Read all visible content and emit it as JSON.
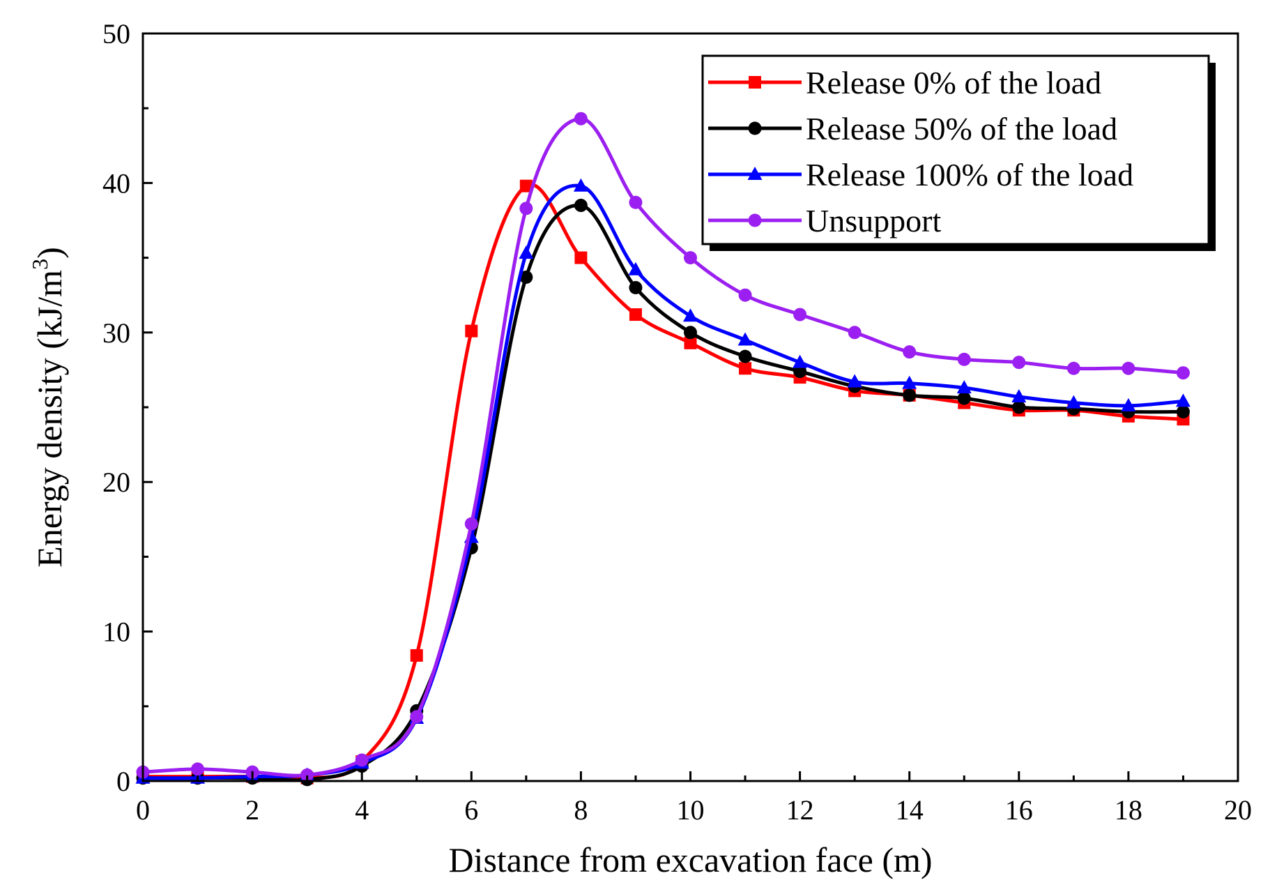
{
  "chart_data": {
    "type": "line",
    "title": "",
    "xlabel": "Distance from excavation face (m)",
    "ylabel_main": "Energy density (kJ/m",
    "ylabel_sup": "3",
    "ylabel_close": ")",
    "xlim": [
      0,
      20
    ],
    "ylim": [
      0,
      50
    ],
    "xticks": [
      0,
      2,
      4,
      6,
      8,
      10,
      12,
      14,
      16,
      18,
      20
    ],
    "yticks": [
      0,
      10,
      20,
      30,
      40,
      50
    ],
    "grid": false,
    "legend_position": "top-right",
    "x": [
      0,
      1,
      2,
      3,
      4,
      5,
      6,
      7,
      8,
      9,
      10,
      11,
      12,
      13,
      14,
      15,
      16,
      17,
      18,
      19
    ],
    "series": [
      {
        "name": "Release 0% of the load",
        "color": "#ff0000",
        "marker": "square",
        "values": [
          0.3,
          0.3,
          0.3,
          0.2,
          1.3,
          8.4,
          30.1,
          39.8,
          35.0,
          31.2,
          29.3,
          27.6,
          27.0,
          26.1,
          25.8,
          25.3,
          24.8,
          24.8,
          24.4,
          24.2
        ]
      },
      {
        "name": "Release 50% of the load",
        "color": "#000000",
        "marker": "circle",
        "values": [
          0.2,
          0.2,
          0.2,
          0.1,
          1.0,
          4.7,
          15.6,
          33.7,
          38.5,
          33.0,
          30.0,
          28.4,
          27.4,
          26.4,
          25.8,
          25.6,
          25.0,
          24.9,
          24.7,
          24.7
        ]
      },
      {
        "name": "Release 100% of the load",
        "color": "#0000ff",
        "marker": "triangle",
        "values": [
          0.2,
          0.2,
          0.3,
          0.4,
          1.2,
          4.2,
          16.3,
          35.3,
          39.8,
          34.2,
          31.1,
          29.5,
          28.0,
          26.7,
          26.6,
          26.3,
          25.7,
          25.3,
          25.1,
          25.4
        ]
      },
      {
        "name": "Unsupport",
        "color": "#9b1ff0",
        "marker": "circle",
        "values": [
          0.6,
          0.8,
          0.6,
          0.4,
          1.4,
          4.3,
          17.2,
          38.3,
          44.3,
          38.7,
          35.0,
          32.5,
          31.2,
          30.0,
          28.7,
          28.2,
          28.0,
          27.6,
          27.6,
          27.3
        ]
      }
    ]
  }
}
